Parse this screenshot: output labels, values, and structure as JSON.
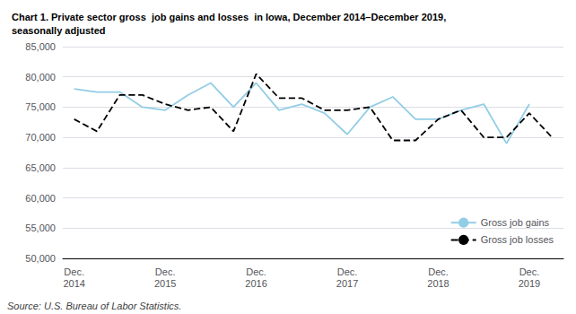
{
  "chart_data": {
    "type": "line",
    "title": "Chart 1. Private sector gross  job gains and losses  in Iowa, December 2014–December 2019,\nseasonally adjusted",
    "annotation": "Source: U.S. Bureau of Labor Statistics.",
    "categories": [
      "Dec.\n2014",
      null,
      null,
      null,
      "Dec.\n2015",
      null,
      null,
      null,
      "Dec.\n2016",
      null,
      null,
      null,
      "Dec.\n2017",
      null,
      null,
      null,
      "Dec.\n2018",
      null,
      null,
      null,
      "Dec.\n2019",
      null
    ],
    "series": [
      {
        "name": "Gross job gains",
        "color": "#92cde6",
        "line_style": "solid",
        "values": [
          78000,
          77500,
          77500,
          75000,
          74500,
          77000,
          79000,
          75000,
          79000,
          74500,
          75500,
          74000,
          70500,
          75000,
          76700,
          73000,
          73000,
          74500,
          75500,
          69000,
          75500,
          null
        ]
      },
      {
        "name": "Gross job losses",
        "color": "#000000",
        "line_style": "dashed",
        "values": [
          73000,
          71000,
          77000,
          77000,
          75500,
          74500,
          75000,
          71000,
          80500,
          76500,
          76500,
          74500,
          74500,
          75000,
          69500,
          69500,
          73000,
          74500,
          70000,
          70000,
          74000,
          70000
        ]
      }
    ],
    "ylim": [
      50000,
      85000
    ],
    "yticks": [
      {
        "value": 50000,
        "label": "50,000"
      },
      {
        "value": 55000,
        "label": "55,000"
      },
      {
        "value": 60000,
        "label": "60,000"
      },
      {
        "value": 65000,
        "label": "65,000"
      },
      {
        "value": 70000,
        "label": "70,000"
      },
      {
        "value": 75000,
        "label": "75,000"
      },
      {
        "value": 80000,
        "label": "80,000"
      },
      {
        "value": 85000,
        "label": "85,000"
      }
    ],
    "grid": true,
    "legend": "lower right"
  }
}
